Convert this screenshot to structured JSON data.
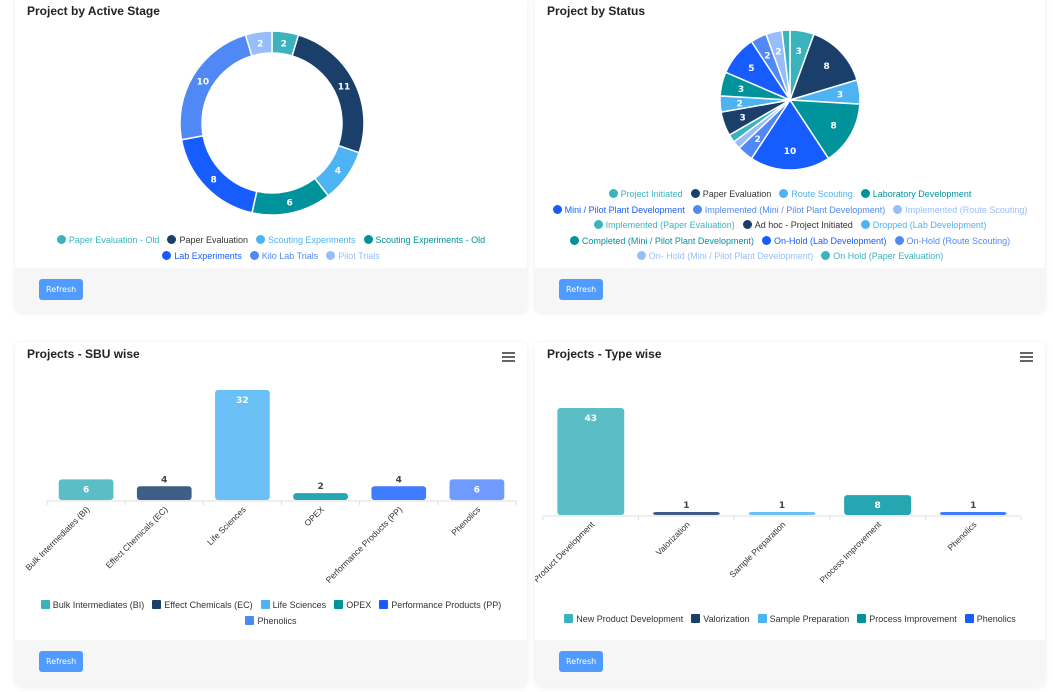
{
  "cards": {
    "stage": {
      "title": "Project by Active Stage",
      "refresh": "Refresh"
    },
    "status": {
      "title": "Project by Status",
      "refresh": "Refresh"
    },
    "sbu": {
      "title": "Projects - SBU wise",
      "refresh": "Refresh"
    },
    "type": {
      "title": "Projects - Type wise",
      "refresh": "Refresh"
    }
  },
  "chart_data": [
    {
      "type": "pie",
      "variant": "donut",
      "title": "Project by Active Stage",
      "legend": "bottom",
      "labels": [
        "Paper Evaluation - Old",
        "Paper Evaluation",
        "Scouting Experiments",
        "Scouting Experiments - Old",
        "Lab Experiments",
        "Kilo Lab Trials",
        "Pilot Trials"
      ],
      "values": [
        2,
        11,
        4,
        6,
        8,
        10,
        2
      ],
      "colors": [
        "#3bb3bd",
        "#1b3f6b",
        "#4db3f2",
        "#00939b",
        "#175cff",
        "#5089f5",
        "#98bdfb"
      ]
    },
    {
      "type": "pie",
      "title": "Project by Status",
      "legend": "bottom",
      "labels": [
        "Project Initiated",
        "Paper Evaluation",
        "Route Scouting",
        "Laboratory Development",
        "Mini / Pilot Plant Development",
        "Implemented (Mini / Pilot Plant Development)",
        "Implemented (Route Scouting)",
        "Implemented (Paper Evaluation)",
        "Ad hoc - Project Initiated",
        "Dropped (Lab Development)",
        "Completed (Mini / Pilot Plant Development)",
        "On-Hold (Lab Development)",
        "On-Hold (Route Scouting)",
        "On- Hold (Mini / Pilot Plant Development)",
        "On Hold (Paper Evaluation)"
      ],
      "values": [
        3,
        8,
        3,
        8,
        10,
        2,
        1,
        1,
        3,
        2,
        3,
        5,
        2,
        2,
        1
      ],
      "colors": [
        "#3bb3bd",
        "#1b3f6b",
        "#4db3f2",
        "#00939b",
        "#175cff",
        "#5089f5",
        "#98bdfb",
        "#3bb3bd",
        "#1b3f6b",
        "#4db3f2",
        "#00939b",
        "#175cff",
        "#5089f5",
        "#98bdfb",
        "#3bb3bd"
      ]
    },
    {
      "type": "bar",
      "title": "Projects - SBU wise",
      "legend": "bottom",
      "categories": [
        "Bulk Intermediates (BI)",
        "Effect Chemicals (EC)",
        "Life Sciences",
        "OPEX",
        "Performance Products (PP)",
        "Phenolics"
      ],
      "values": [
        6,
        4,
        32,
        2,
        4,
        6
      ],
      "colors": [
        "#5bbec6",
        "#3e5e86",
        "#6bc1f6",
        "#25a6b0",
        "#3f7cff",
        "#6f9bff"
      ],
      "legend_colors": [
        "#3bb3bd",
        "#1b3f6b",
        "#4db3f2",
        "#00939b",
        "#175cff",
        "#5089f5"
      ]
    },
    {
      "type": "bar",
      "title": "Projects - Type wise",
      "legend": "bottom",
      "categories": [
        "New Product Development",
        "Valorization",
        "Sample Preparation",
        "Process Improvement",
        "Phenolics"
      ],
      "values": [
        43,
        1,
        1,
        8,
        1
      ],
      "colors": [
        "#5bbec6",
        "#3e5e86",
        "#6bc1f6",
        "#25a6b0",
        "#3f7cff"
      ],
      "legend_colors": [
        "#3bb3bd",
        "#1b3f6b",
        "#4db3f2",
        "#00939b",
        "#175cff"
      ]
    }
  ]
}
